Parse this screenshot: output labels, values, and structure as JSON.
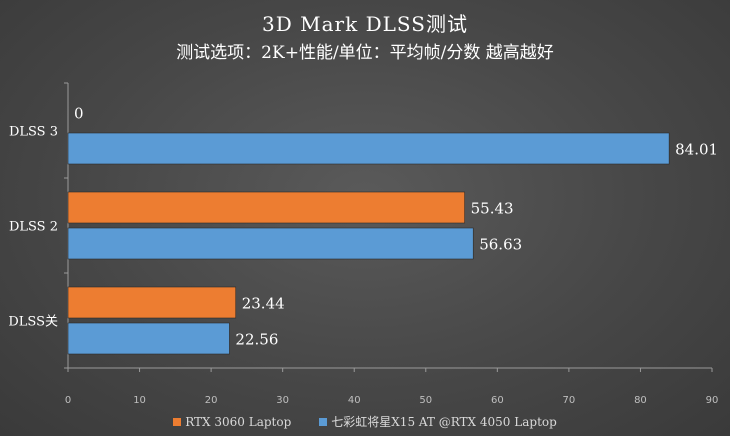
{
  "chart_data": {
    "type": "bar",
    "orientation": "horizontal",
    "title": "3D Mark DLSS测试",
    "subtitle": "测试选项：2K+性能/单位：平均帧/分数 越高越好",
    "categories": [
      "DLSS 3",
      "DLSS 2",
      "DLSS关"
    ],
    "series": [
      {
        "name": "RTX 3060 Laptop",
        "color": "#ED7D31",
        "values": [
          0,
          55.43,
          23.44
        ],
        "labels": [
          "0",
          "55.43",
          "23.44"
        ]
      },
      {
        "name": "七彩虹将星X15 AT @RTX 4050 Laptop",
        "color": "#5B9BD5",
        "values": [
          84.01,
          56.63,
          22.56
        ],
        "labels": [
          "84.01",
          "56.63",
          "22.56"
        ]
      }
    ],
    "xlim": [
      0,
      90
    ],
    "xticks": [
      "0",
      "10",
      "20",
      "30",
      "40",
      "50",
      "60",
      "70",
      "80",
      "90"
    ],
    "grid": false,
    "legend_position": "bottom"
  }
}
